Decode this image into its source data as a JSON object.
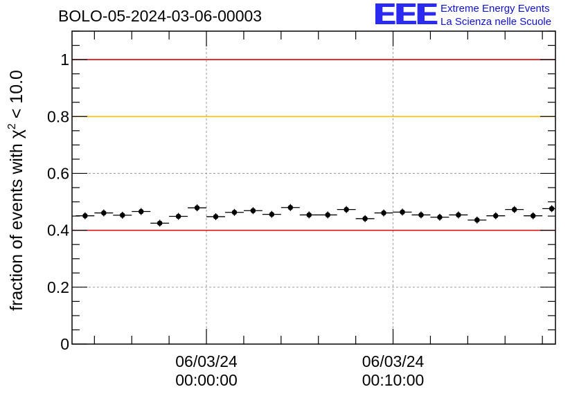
{
  "header": {
    "title": "BOLO-05-2024-03-06-00003",
    "logo_mark": "EEE",
    "logo_line1": "Extreme Energy Events",
    "logo_line2": "La Scienza nelle Scuole"
  },
  "colors": {
    "red_line": "#e00000",
    "yellow_line": "#ffc000",
    "marker": "#000000",
    "grid": "#9a9a9a",
    "logo": "#2a2af0"
  },
  "chart_data": {
    "type": "scatter",
    "title": "BOLO-05-2024-03-06-00003",
    "ylabel": "fraction of events with χ² < 10.0",
    "ylabel_parts": {
      "prefix": "fraction of events with ",
      "symbol": "χ",
      "sup": "2",
      "suffix": " < 10.0"
    },
    "ylim": [
      0,
      1.1
    ],
    "y_ticks": [
      0,
      0.2,
      0.4,
      0.6,
      0.8,
      1
    ],
    "y_tick_labels": [
      "0",
      "0.2",
      "0.4",
      "0.6",
      "0.8",
      "1"
    ],
    "x_range_minutes": [
      -7.2,
      18.7
    ],
    "x_major_ticks": [
      {
        "minutes": 0,
        "date": "06/03/24",
        "time": "00:00:00"
      },
      {
        "minutes": 10,
        "date": "06/03/24",
        "time": "00:10:00"
      }
    ],
    "x_minor_tick_interval_minutes": 2,
    "grid": true,
    "reference_lines": [
      {
        "y": 1.0,
        "color": "#e00000"
      },
      {
        "y": 0.8,
        "color": "#ffc000"
      },
      {
        "y": 0.4,
        "color": "#e00000"
      }
    ],
    "bin_width_minutes": 1,
    "points": [
      {
        "x": -6.5,
        "y": 0.451
      },
      {
        "x": -5.5,
        "y": 0.461
      },
      {
        "x": -4.5,
        "y": 0.453
      },
      {
        "x": -3.5,
        "y": 0.466
      },
      {
        "x": -2.5,
        "y": 0.425
      },
      {
        "x": -1.5,
        "y": 0.449
      },
      {
        "x": -0.5,
        "y": 0.479
      },
      {
        "x": 0.5,
        "y": 0.448
      },
      {
        "x": 1.5,
        "y": 0.463
      },
      {
        "x": 2.5,
        "y": 0.469
      },
      {
        "x": 3.5,
        "y": 0.456
      },
      {
        "x": 4.5,
        "y": 0.48
      },
      {
        "x": 5.5,
        "y": 0.454
      },
      {
        "x": 6.5,
        "y": 0.454
      },
      {
        "x": 7.5,
        "y": 0.473
      },
      {
        "x": 8.5,
        "y": 0.441
      },
      {
        "x": 9.5,
        "y": 0.461
      },
      {
        "x": 10.5,
        "y": 0.464
      },
      {
        "x": 11.5,
        "y": 0.454
      },
      {
        "x": 12.5,
        "y": 0.446
      },
      {
        "x": 13.5,
        "y": 0.454
      },
      {
        "x": 14.5,
        "y": 0.436
      },
      {
        "x": 15.5,
        "y": 0.451
      },
      {
        "x": 16.5,
        "y": 0.473
      },
      {
        "x": 17.5,
        "y": 0.451
      },
      {
        "x": 18.5,
        "y": 0.476
      }
    ]
  }
}
